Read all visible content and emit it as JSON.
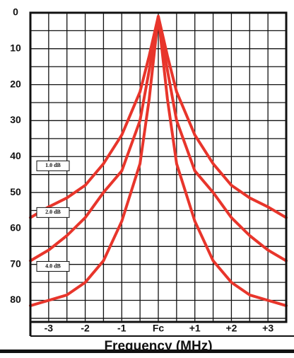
{
  "chart_data": {
    "type": "line",
    "x_label": "Frequency (MHz)",
    "x": [
      -3.5,
      -3,
      -2.5,
      -2,
      -1.5,
      -1,
      -0.5,
      -0.25,
      0,
      0.25,
      0.5,
      1,
      1.5,
      2,
      2.5,
      3,
      3.5
    ],
    "series": [
      {
        "name": "1.0 dB",
        "color": "#e8352b",
        "values": [
          57,
          54,
          51.5,
          48,
          42,
          34,
          22,
          12,
          1,
          12,
          22,
          34,
          42,
          48,
          51.5,
          54,
          57
        ]
      },
      {
        "name": "2.0 dB",
        "color": "#e8352b",
        "values": [
          69,
          66,
          62,
          57,
          50,
          44,
          30,
          16,
          1,
          16,
          30,
          44,
          50,
          57,
          62,
          66,
          69
        ]
      },
      {
        "name": "4.0 dB",
        "color": "#e8352b",
        "values": [
          81.5,
          80,
          78.5,
          75,
          69,
          58,
          42,
          24,
          1,
          24,
          42,
          58,
          69,
          75,
          78.5,
          80,
          81.5
        ]
      }
    ],
    "xlim": [
      -3.5,
      3.5
    ],
    "ylim": [
      0,
      86
    ],
    "xticks": [
      -3,
      -2,
      -1,
      {
        "value": 0,
        "label": "Fc"
      },
      {
        "value": 1,
        "label": "+1"
      },
      {
        "value": 2,
        "label": "+2"
      },
      {
        "value": 3,
        "label": "+3"
      }
    ],
    "yticks": [
      0,
      10,
      20,
      30,
      40,
      50,
      60,
      70,
      80
    ],
    "grid": true
  }
}
